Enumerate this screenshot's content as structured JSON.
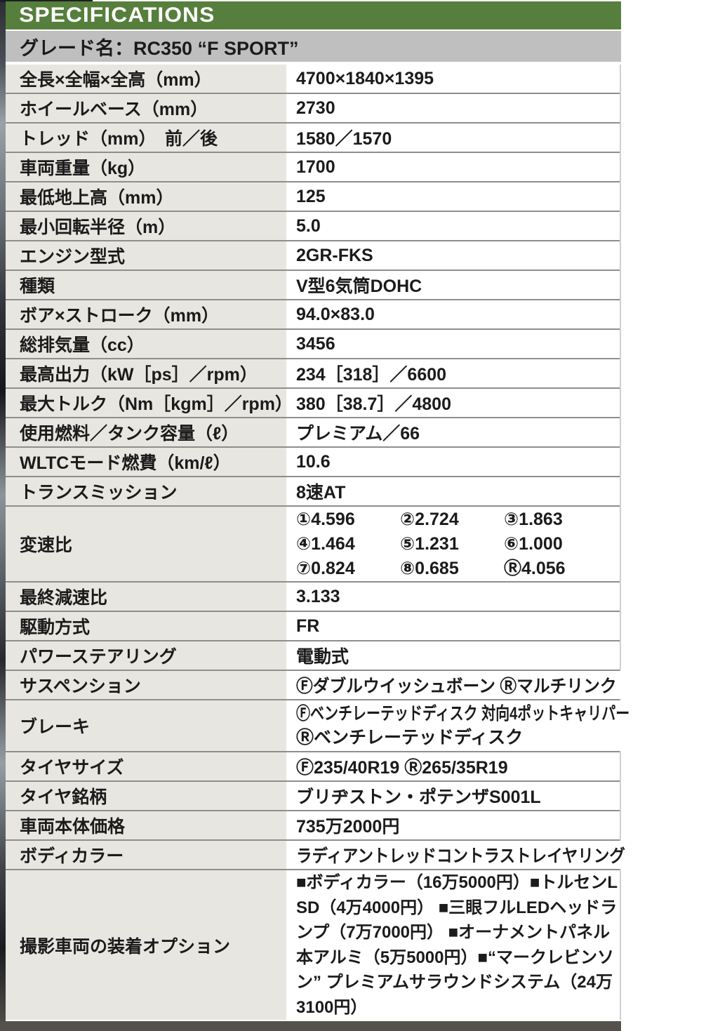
{
  "header": {
    "title": "SPECIFICATIONS"
  },
  "grade": {
    "text": "グレード名：RC350 “F SPORT”"
  },
  "colors": {
    "header_green": "#567e3c",
    "grade_bar_gray": "#bfbfbf",
    "label_cell_bg": "#e8e6e1",
    "divider_gray": "#8e8e8e"
  },
  "specs": [
    {
      "label": "全長×全幅×全高（mm）",
      "value": "4700×1840×1395"
    },
    {
      "label": "ホイールベース（mm）",
      "value": "2730"
    },
    {
      "label": "トレッド（mm）　前／後",
      "value": "1580／1570"
    },
    {
      "label": "車両重量（kg）",
      "value": "1700"
    },
    {
      "label": "最低地上高（mm）",
      "value": "125"
    },
    {
      "label": "最小回転半径（m）",
      "value": "5.0"
    },
    {
      "label": "エンジン型式",
      "value": "2GR-FKS"
    },
    {
      "label": "種類",
      "value": "V型6気筒DOHC"
    },
    {
      "label": "ボア×ストローク（mm）",
      "value": "94.0×83.0"
    },
    {
      "label": "総排気量（cc）",
      "value": "3456"
    },
    {
      "label": "最高出力（kW［ps］／rpm）",
      "value": "234［318］／6600"
    },
    {
      "label": "最大トルク（Nm［kgm］／rpm）",
      "value": "380［38.7］／4800"
    },
    {
      "label": "使用燃料／タンク容量（ℓ）",
      "value": "プレミアム／66"
    },
    {
      "label": "WLTCモード燃費（km/ℓ）",
      "value": "10.6"
    },
    {
      "label": "トランスミッション",
      "value": "8速AT"
    }
  ],
  "gear": {
    "label": "変速比",
    "entries": [
      "①4.596",
      "②2.724",
      "③1.863",
      "④1.464",
      "⑤1.231",
      "⑥1.000",
      "⑦0.824",
      "⑧0.685",
      "Ⓡ4.056"
    ]
  },
  "specs2": [
    {
      "label": "最終減速比",
      "value": "3.133"
    },
    {
      "label": "駆動方式",
      "value": "FR"
    },
    {
      "label": "パワーステアリング",
      "value": "電動式"
    },
    {
      "label": "サスペンション",
      "value": "Ⓕダブルウイッシュボーン Ⓡマルチリンク"
    }
  ],
  "brake": {
    "label": "ブレーキ",
    "line1": "Ⓕベンチレーテッドディスク 対向4ポットキャリパー",
    "line2": "Ⓡベンチレーテッドディスク"
  },
  "specs3": [
    {
      "label": "タイヤサイズ",
      "value": "Ⓕ235/40R19 Ⓡ265/35R19"
    },
    {
      "label": "タイヤ銘柄",
      "value": "ブリヂストン・ポテンザS001L"
    },
    {
      "label": "車両本体価格",
      "value": "735万2000円"
    },
    {
      "label": "ボディカラー",
      "value": "ラディアントレッドコントラストレイヤリング"
    }
  ],
  "options": {
    "label": "撮影車両の装着オプション",
    "text": "■ボディカラー（16万5000円）■トルセンLSD（4万4000円） ■三眼フルLEDヘッドランプ（7万7000円） ■オーナメントパネル本アルミ（5万5000円）■“マークレビンソン” プレミアムサラウンドシステム（24万3100円）"
  }
}
